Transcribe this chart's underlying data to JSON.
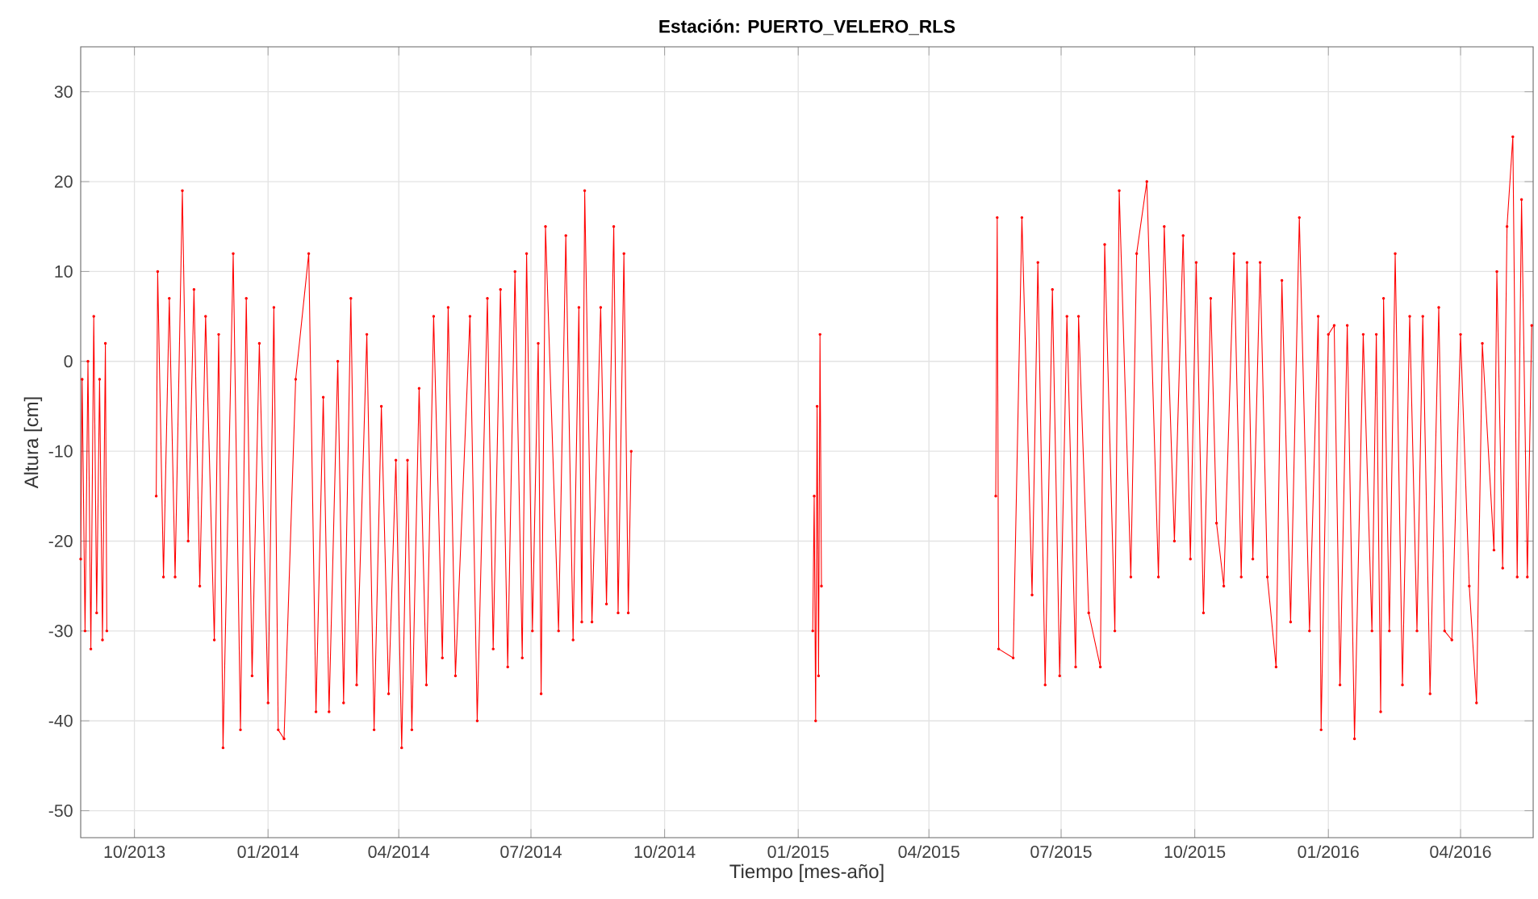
{
  "chart_data": {
    "type": "line",
    "title": "Estación: PUERTO_VELERO_RLS",
    "xlabel": "Tiempo [mes-año]",
    "ylabel": "Altura [cm]",
    "color": "#ff0000",
    "marker": "circle",
    "grid": true,
    "xlim": [
      "2013-08-25",
      "2016-05-21"
    ],
    "ylim": [
      -53,
      35
    ],
    "xticks": [
      {
        "value": "2013-10-01",
        "label": "10/2013"
      },
      {
        "value": "2014-01-01",
        "label": "01/2014"
      },
      {
        "value": "2014-04-01",
        "label": "04/2014"
      },
      {
        "value": "2014-07-01",
        "label": "07/2014"
      },
      {
        "value": "2014-10-01",
        "label": "10/2014"
      },
      {
        "value": "2015-01-01",
        "label": "01/2015"
      },
      {
        "value": "2015-04-01",
        "label": "04/2015"
      },
      {
        "value": "2015-07-01",
        "label": "07/2015"
      },
      {
        "value": "2015-10-01",
        "label": "10/2015"
      },
      {
        "value": "2016-01-01",
        "label": "01/2016"
      },
      {
        "value": "2016-04-01",
        "label": "04/2016"
      }
    ],
    "yticks": [
      -50,
      -40,
      -30,
      -20,
      -10,
      0,
      10,
      20,
      30
    ],
    "x": [
      "2013-08-25",
      "2013-08-26",
      "2013-08-28",
      "2013-08-30",
      "2013-09-01",
      "2013-09-03",
      "2013-09-05",
      "2013-09-07",
      "2013-09-09",
      "2013-09-11",
      "2013-09-12",
      "2013-09-25",
      "2013-10-16",
      "2013-10-17",
      "2013-10-21",
      "2013-10-25",
      "2013-10-29",
      "2013-11-03",
      "2013-11-07",
      "2013-11-11",
      "2013-11-15",
      "2013-11-19",
      "2013-11-25",
      "2013-11-28",
      "2013-12-01",
      "2013-12-08",
      "2013-12-13",
      "2013-12-17",
      "2013-12-21",
      "2013-12-26",
      "2014-01-01",
      "2014-01-05",
      "2014-01-08",
      "2014-01-12",
      "2014-01-20",
      "2014-01-29",
      "2014-02-03",
      "2014-02-08",
      "2014-02-12",
      "2014-02-18",
      "2014-02-22",
      "2014-02-27",
      "2014-03-03",
      "2014-03-10",
      "2014-03-15",
      "2014-03-20",
      "2014-03-25",
      "2014-03-30",
      "2014-04-03",
      "2014-04-07",
      "2014-04-10",
      "2014-04-15",
      "2014-04-20",
      "2014-04-25",
      "2014-05-01",
      "2014-05-05",
      "2014-05-10",
      "2014-05-20",
      "2014-05-25",
      "2014-06-01",
      "2014-06-05",
      "2014-06-10",
      "2014-06-15",
      "2014-06-20",
      "2014-06-25",
      "2014-06-28",
      "2014-07-02",
      "2014-07-06",
      "2014-07-08",
      "2014-07-11",
      "2014-07-20",
      "2014-07-25",
      "2014-07-30",
      "2014-08-03",
      "2014-08-05",
      "2014-08-07",
      "2014-08-12",
      "2014-08-18",
      "2014-08-22",
      "2014-08-27",
      "2014-08-30",
      "2014-09-03",
      "2014-09-06",
      "2014-09-08",
      "2014-11-01",
      "2015-01-11",
      "2015-01-12",
      "2015-01-13",
      "2015-01-14",
      "2015-01-15",
      "2015-01-16",
      "2015-01-17",
      "2015-03-01",
      "2015-05-17",
      "2015-05-18",
      "2015-05-19",
      "2015-05-29",
      "2015-06-04",
      "2015-06-11",
      "2015-06-15",
      "2015-06-20",
      "2015-06-25",
      "2015-06-30",
      "2015-07-05",
      "2015-07-11",
      "2015-07-13",
      "2015-07-20",
      "2015-07-28",
      "2015-07-31",
      "2015-08-07",
      "2015-08-10",
      "2015-08-18",
      "2015-08-22",
      "2015-08-29",
      "2015-09-06",
      "2015-09-10",
      "2015-09-17",
      "2015-09-23",
      "2015-09-28",
      "2015-10-02",
      "2015-10-07",
      "2015-10-12",
      "2015-10-16",
      "2015-10-21",
      "2015-10-28",
      "2015-11-02",
      "2015-11-06",
      "2015-11-10",
      "2015-11-15",
      "2015-11-20",
      "2015-11-26",
      "2015-11-30",
      "2015-12-06",
      "2015-12-12",
      "2015-12-19",
      "2015-12-25",
      "2015-12-27",
      "2016-01-01",
      "2016-01-05",
      "2016-01-09",
      "2016-01-14",
      "2016-01-19",
      "2016-01-25",
      "2016-01-31",
      "2016-02-03",
      "2016-02-06",
      "2016-02-08",
      "2016-02-12",
      "2016-02-16",
      "2016-02-21",
      "2016-02-26",
      "2016-03-02",
      "2016-03-06",
      "2016-03-11",
      "2016-03-17",
      "2016-03-21",
      "2016-03-26",
      "2016-04-01",
      "2016-04-07",
      "2016-04-12",
      "2016-04-16",
      "2016-04-24",
      "2016-04-26",
      "2016-04-30",
      "2016-05-03",
      "2016-05-07",
      "2016-05-10",
      "2016-05-13",
      "2016-05-17",
      "2016-05-20"
    ],
    "values": [
      -22,
      -2,
      -30,
      0,
      -32,
      5,
      -28,
      -2,
      -31,
      2,
      -30,
      null,
      -15,
      10,
      -24,
      7,
      -24,
      19,
      -20,
      8,
      -25,
      5,
      -31,
      3,
      -43,
      12,
      -41,
      7,
      -35,
      2,
      -38,
      6,
      -41,
      -42,
      -2,
      12,
      -39,
      -4,
      -39,
      0,
      -38,
      7,
      -36,
      3,
      -41,
      -5,
      -37,
      -11,
      -43,
      -11,
      -41,
      -3,
      -36,
      5,
      -33,
      6,
      -35,
      5,
      -40,
      7,
      -32,
      8,
      -34,
      10,
      -33,
      12,
      -30,
      2,
      -37,
      15,
      -30,
      14,
      -31,
      6,
      -29,
      19,
      -29,
      6,
      -27,
      15,
      -28,
      12,
      -28,
      -10,
      null,
      -30,
      -15,
      -40,
      -5,
      -35,
      3,
      -25,
      null,
      -15,
      16,
      -32,
      -33,
      16,
      -26,
      11,
      -36,
      8,
      -35,
      5,
      -34,
      5,
      -28,
      -34,
      13,
      -30,
      19,
      -24,
      12,
      20,
      -24,
      15,
      -20,
      14,
      -22,
      11,
      -28,
      7,
      -18,
      -25,
      12,
      -24,
      11,
      -22,
      11,
      -24,
      -34,
      9,
      -29,
      16,
      -30,
      5,
      -41,
      3,
      4,
      -36,
      4,
      -42,
      3,
      -30,
      3,
      -39,
      7,
      -30,
      12,
      -36,
      5,
      -30,
      5,
      -37,
      6,
      -30,
      -31,
      3,
      -25,
      -38,
      2,
      -21,
      10,
      -23,
      15,
      25,
      -24,
      18,
      -24,
      4
    ]
  }
}
